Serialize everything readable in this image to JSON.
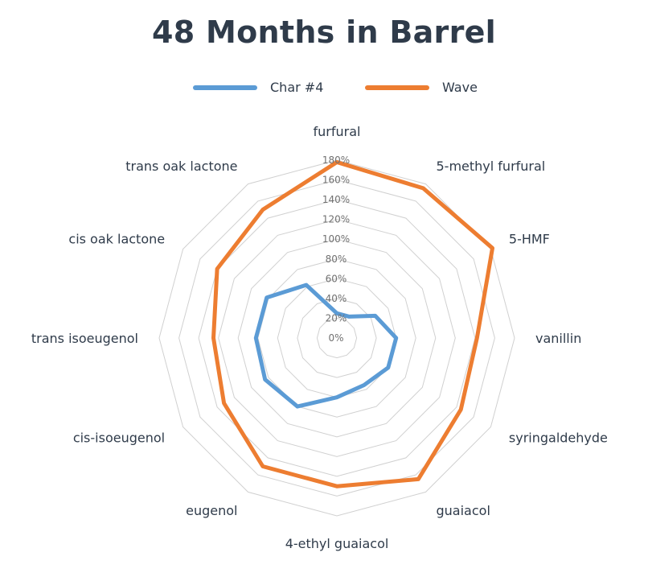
{
  "chart_data": {
    "type": "radar",
    "title": "48 Months in Barrel",
    "legend_position": "top",
    "grid": true,
    "categories": [
      "furfural",
      "5-methyl furfural",
      "5-HMF",
      "vanillin",
      "syringaldehyde",
      "guaiacol",
      "4-ethyl guaiacol",
      "eugenol",
      "cis-isoeugenol",
      "trans isoeugenol",
      "cis oak lactone",
      "trans oak lactone"
    ],
    "ticks": [
      "0%",
      "20%",
      "40%",
      "60%",
      "80%",
      "100%",
      "120%",
      "140%",
      "160%",
      "180%"
    ],
    "rlim": [
      0,
      180
    ],
    "series": [
      {
        "name": "Char #4",
        "color": "#5b9bd5",
        "values": [
          25,
          25,
          45,
          60,
          60,
          55,
          60,
          80,
          84,
          82,
          82,
          62
        ]
      },
      {
        "name": "Wave",
        "color": "#ed7d31",
        "values": [
          178,
          175,
          182,
          142,
          145,
          165,
          150,
          150,
          132,
          125,
          140,
          150
        ]
      }
    ]
  }
}
